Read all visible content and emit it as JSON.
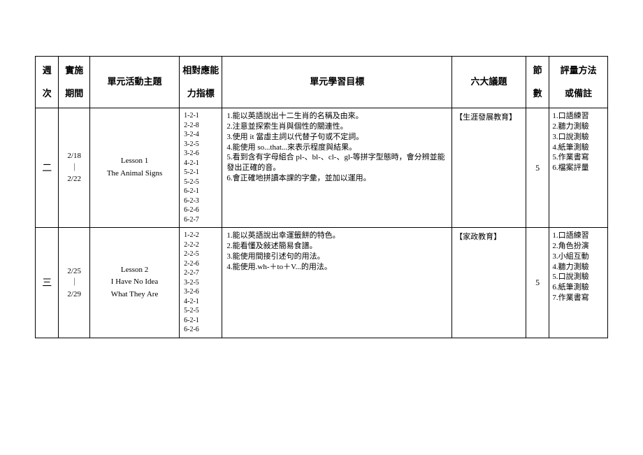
{
  "headers": {
    "week": "週\n次",
    "period": "實施\n期間",
    "unit": "單元活動主題",
    "indicator": "相對應能\n力指標",
    "objective": "單元學習目標",
    "topic": "六大議題",
    "count": "節\n數",
    "method": "評量方法\n或備註"
  },
  "rows": [
    {
      "week": "二",
      "period_start": "2/18",
      "period_sep": "｜",
      "period_end": "2/22",
      "unit_lesson": "Lesson 1",
      "unit_title": "The Animal Signs",
      "indicators": [
        "1-2-1",
        "2-2-8",
        "3-2-4",
        "3-2-5",
        "3-2-6",
        "4-2-1",
        "5-2-1",
        "5-2-5",
        "6-2-1",
        "6-2-3",
        "6-2-6",
        "6-2-7"
      ],
      "objectives": [
        "1.能以英語說出十二生肖的名稱及由來。",
        "2.注意並探索生肖與個性的關連性。",
        "3.使用 it 當虛主詞以代替子句或不定詞。",
        "4.能使用 so...that...來表示程度與結果。",
        "5.看到含有字母組合 pl-、bl-、cl-、gl-等拼字型態時，會分辨並能發出正確的音。",
        "6.會正確地拼讀本課的字彙，並加以運用。"
      ],
      "topic": "【生涯發展教育】",
      "count": "5",
      "methods": [
        "1.口語練習",
        "2.聽力測驗",
        "3.口說測驗",
        "4.紙筆測驗",
        "5.作業書寫",
        "6.檔案評量"
      ]
    },
    {
      "week": "三",
      "period_start": "2/25",
      "period_sep": "｜",
      "period_end": "2/29",
      "unit_lesson": "Lesson 2",
      "unit_title": "I Have No Idea\nWhat They Are",
      "indicators": [
        "1-2-2",
        "2-2-2",
        "2-2-5",
        "2-2-6",
        "2-2-7",
        "3-2-5",
        "3-2-6",
        "4-2-1",
        "5-2-5",
        "6-2-1",
        "6-2-6"
      ],
      "objectives": [
        "1.能以英語說出幸運籤餅的特色。",
        "2.能看懂及敍述簡易食譜。",
        "3.能使用間接引述句的用法。",
        "4.能使用.wh-＋to＋V...的用法。"
      ],
      "topic": "【家政教育】",
      "count": "5",
      "methods": [
        "1.口語練習",
        "2.角色扮演",
        "3.小組互動",
        "4.聽力測驗",
        "5.口說測驗",
        "6.紙筆測驗",
        "7.作業書寫"
      ]
    }
  ]
}
